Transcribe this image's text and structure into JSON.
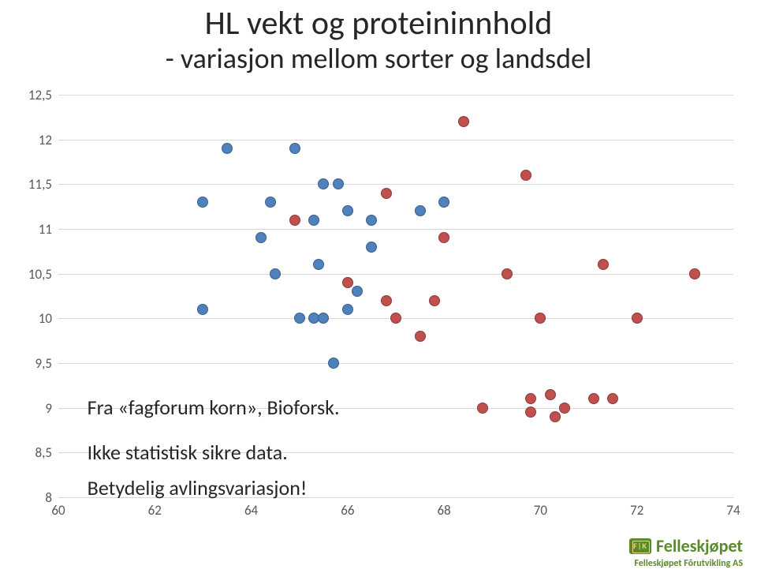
{
  "title": {
    "line1": "HL vekt og proteininnhold",
    "line2": "- variasjon mellom sorter og landsdel",
    "font_size_line1": 42,
    "font_size_line2": 36,
    "color": "#262626"
  },
  "chart": {
    "type": "scatter",
    "background_color": "#ffffff",
    "grid_color": "#d9d9d9",
    "xlim": [
      60,
      74
    ],
    "ylim": [
      8,
      12.5
    ],
    "xticks": [
      60,
      62,
      64,
      66,
      68,
      70,
      72,
      74
    ],
    "yticks": [
      8,
      8.5,
      9,
      9.5,
      10,
      10.5,
      11,
      11.5,
      12,
      12.5
    ],
    "xtick_labels": [
      "60",
      "62",
      "64",
      "66",
      "68",
      "70",
      "72",
      "74"
    ],
    "ytick_labels": [
      "8",
      "8,5",
      "9",
      "9,5",
      "10",
      "10,5",
      "11",
      "11,5",
      "12",
      "12,5"
    ],
    "tick_font_size": 17,
    "tick_color": "#595959",
    "marker_radius": 6,
    "marker_border_width": 0.8,
    "series": {
      "blue": {
        "fill": "#4f81bd",
        "stroke": "#3a5f8a",
        "points": [
          [
            63.0,
            11.3
          ],
          [
            63.0,
            10.1
          ],
          [
            63.5,
            11.9
          ],
          [
            64.2,
            10.9
          ],
          [
            64.4,
            11.3
          ],
          [
            64.5,
            10.5
          ],
          [
            64.9,
            11.9
          ],
          [
            65.0,
            10.0
          ],
          [
            65.3,
            10.0
          ],
          [
            65.3,
            11.1
          ],
          [
            65.4,
            10.6
          ],
          [
            65.5,
            10.0
          ],
          [
            65.5,
            11.5
          ],
          [
            65.7,
            9.5
          ],
          [
            65.8,
            11.5
          ],
          [
            66.0,
            10.1
          ],
          [
            66.0,
            11.2
          ],
          [
            66.2,
            10.3
          ],
          [
            66.5,
            10.8
          ],
          [
            66.5,
            11.1
          ],
          [
            67.5,
            11.2
          ],
          [
            68.0,
            11.3
          ]
        ]
      },
      "red": {
        "fill": "#c0504d",
        "stroke": "#8c3a38",
        "points": [
          [
            64.9,
            11.1
          ],
          [
            66.0,
            10.4
          ],
          [
            66.8,
            11.4
          ],
          [
            66.8,
            10.2
          ],
          [
            67.0,
            10.0
          ],
          [
            67.5,
            9.8
          ],
          [
            67.8,
            10.2
          ],
          [
            68.0,
            10.9
          ],
          [
            68.4,
            12.2
          ],
          [
            68.8,
            9.0
          ],
          [
            69.3,
            10.5
          ],
          [
            69.7,
            11.6
          ],
          [
            69.8,
            8.95
          ],
          [
            69.8,
            9.1
          ],
          [
            70.0,
            10.0
          ],
          [
            70.2,
            9.15
          ],
          [
            70.3,
            8.9
          ],
          [
            70.5,
            9.0
          ],
          [
            71.1,
            9.1
          ],
          [
            71.3,
            10.6
          ],
          [
            71.5,
            9.1
          ],
          [
            72.0,
            10.0
          ],
          [
            73.2,
            10.5
          ]
        ]
      }
    }
  },
  "annotation": {
    "lines": [
      "Fra «fagforum korn», Bioforsk.",
      "Ikke statistisk sikre data.",
      "Betydelig avlingsvariasjon!"
    ],
    "font_size": 26,
    "color": "#262626",
    "anchor_y_values": [
      9.0,
      8.5,
      8.1
    ]
  },
  "logo": {
    "name": "Felleskjøpet",
    "sub": "Felleskjøpet Fôrutvikling AS",
    "badge_text": "F|K",
    "brand_color": "#5b8a2b",
    "badge_text_color": "#e8d87a"
  }
}
